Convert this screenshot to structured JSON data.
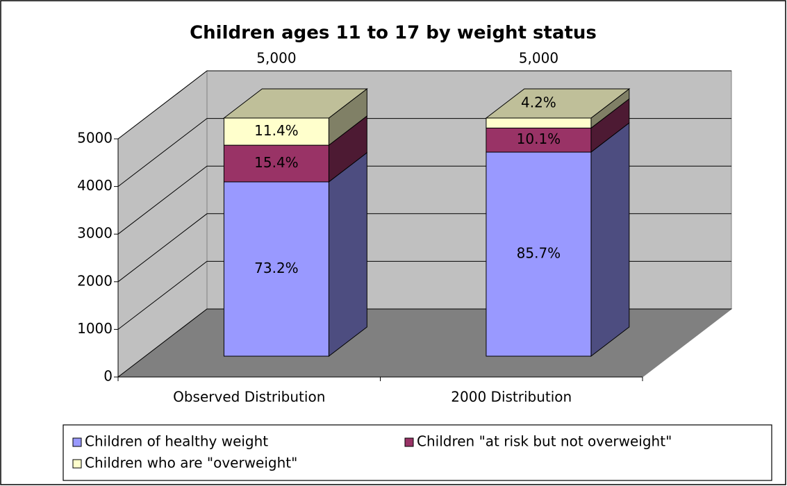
{
  "chart_data": {
    "type": "bar3d_stacked",
    "title": "Children ages 11 to 17 by weight status",
    "categories": [
      "Observed Distribution",
      "2000 Distribution"
    ],
    "totals": [
      5000,
      5000
    ],
    "total_labels": [
      "5,000",
      "5,000"
    ],
    "series": [
      {
        "name": "Children of healthy weight",
        "color": "#9999ff",
        "values": [
          3660,
          4285
        ],
        "value_labels": [
          "73.2%",
          "85.7%"
        ]
      },
      {
        "name": "Children \"at risk but not overweight\"",
        "color": "#993366",
        "values": [
          770,
          505
        ],
        "value_labels": [
          "15.4%",
          "10.1%"
        ]
      },
      {
        "name": "Children who are \"overweight\"",
        "color": "#ffffcc",
        "values": [
          570,
          210
        ],
        "value_labels": [
          "11.4%",
          "4.2%"
        ]
      }
    ],
    "ylim": [
      0,
      5000
    ],
    "yticks": [
      0,
      1000,
      2000,
      3000,
      4000,
      5000
    ],
    "grid": true,
    "legend": "bottom"
  }
}
